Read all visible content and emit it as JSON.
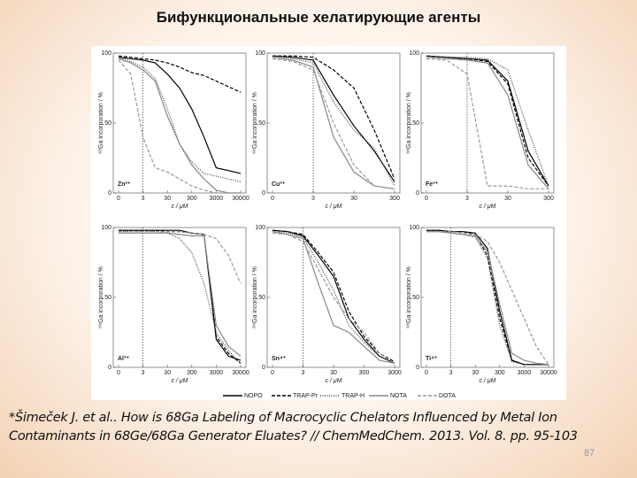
{
  "title": "Бифункциональные хелатирующие агенты",
  "citation": "*Šimeček J. et al.. How is 68Ga Labeling of Macrocyclic Chelators Influenced by Metal Ion Contaminants in 68Ge/68Ga Generator Eluates? // ChemMedChem. 2013. Vol. 8. pp. 95-103",
  "page_number": "87",
  "legend": [
    {
      "name": "NOPO",
      "color": "#000000",
      "dash": "solid"
    },
    {
      "name": "TRAP-Pr",
      "color": "#000000",
      "dash": "dashed"
    },
    {
      "name": "TRAP-H",
      "color": "#444444",
      "dash": "dotted"
    },
    {
      "name": "NOTA",
      "color": "#888888",
      "dash": "solid"
    },
    {
      "name": "DOTA",
      "color": "#999999",
      "dash": "dashed"
    }
  ],
  "chart_data": [
    {
      "type": "line",
      "title": "Zn²⁺",
      "x_label": "c / μM",
      "y_label": "⁶⁸Ga incorporation / %",
      "categories": [
        "0",
        null,
        "3",
        null,
        "30",
        null,
        "300",
        null,
        "3000",
        null,
        "30000"
      ],
      "ylim": [
        0,
        100
      ],
      "yticks": [
        0,
        50,
        100
      ],
      "series": [
        {
          "color": "#000000",
          "dash": "solid",
          "values": [
            97,
            96,
            95,
            93,
            85,
            75,
            60,
            40,
            18,
            16,
            14
          ]
        },
        {
          "color": "#000000",
          "dash": "dashed",
          "values": [
            98,
            97,
            96,
            95,
            93,
            90,
            86,
            84,
            80,
            76,
            72
          ]
        },
        {
          "color": "#444444",
          "dash": "dotted",
          "values": [
            97,
            94,
            90,
            82,
            60,
            35,
            22,
            14,
            12,
            10,
            8
          ]
        },
        {
          "color": "#888888",
          "dash": "solid",
          "values": [
            96,
            93,
            88,
            80,
            55,
            35,
            20,
            10,
            2,
            0,
            0
          ]
        },
        {
          "color": "#999999",
          "dash": "dashed",
          "values": [
            95,
            85,
            40,
            18,
            15,
            10,
            5,
            2,
            0,
            0,
            0
          ]
        }
      ]
    },
    {
      "type": "line",
      "title": "Cu²⁺",
      "x_label": "c / μM",
      "y_label": "⁶⁸Ga incorporation / %",
      "categories": [
        "0",
        null,
        "3",
        null,
        "30",
        null,
        "300"
      ],
      "ylim": [
        0,
        100
      ],
      "yticks": [
        0,
        50,
        100
      ],
      "series": [
        {
          "color": "#000000",
          "dash": "solid",
          "values": [
            98,
            97,
            95,
            70,
            48,
            30,
            8
          ]
        },
        {
          "color": "#000000",
          "dash": "dashed",
          "values": [
            98,
            98,
            97,
            88,
            75,
            45,
            10
          ]
        },
        {
          "color": "#444444",
          "dash": "dotted",
          "values": [
            97,
            96,
            93,
            65,
            45,
            32,
            5
          ]
        },
        {
          "color": "#888888",
          "dash": "solid",
          "values": [
            97,
            95,
            90,
            40,
            15,
            5,
            3
          ]
        },
        {
          "color": "#999999",
          "dash": "dashed",
          "values": [
            96,
            94,
            88,
            50,
            20,
            5,
            3
          ]
        }
      ]
    },
    {
      "type": "line",
      "title": "Fe³⁺",
      "x_label": "c / μM",
      "y_label": "⁶⁸Ga incorporation / %",
      "categories": [
        "0",
        null,
        "3",
        null,
        "30",
        null,
        "300"
      ],
      "ylim": [
        0,
        100
      ],
      "yticks": [
        0,
        50,
        100
      ],
      "series": [
        {
          "color": "#000000",
          "dash": "solid",
          "values": [
            98,
            97,
            96,
            95,
            80,
            30,
            5
          ]
        },
        {
          "color": "#000000",
          "dash": "dashed",
          "values": [
            98,
            97,
            96,
            94,
            78,
            25,
            5
          ]
        },
        {
          "color": "#444444",
          "dash": "dotted",
          "values": [
            98,
            97,
            97,
            96,
            88,
            45,
            5
          ]
        },
        {
          "color": "#888888",
          "dash": "solid",
          "values": [
            97,
            96,
            95,
            93,
            70,
            20,
            3
          ]
        },
        {
          "color": "#999999",
          "dash": "dashed",
          "values": [
            96,
            95,
            85,
            5,
            5,
            3,
            3
          ]
        }
      ]
    },
    {
      "type": "line",
      "title": "Al³⁺",
      "x_label": "c / μM",
      "y_label": "⁶⁸Ga incorporation / %",
      "categories": [
        "0",
        null,
        "3",
        null,
        "30",
        null,
        "300",
        null,
        "3000",
        null,
        "30000"
      ],
      "ylim": [
        0,
        100
      ],
      "yticks": [
        0,
        50,
        100
      ],
      "series": [
        {
          "color": "#000000",
          "dash": "solid",
          "values": [
            98,
            98,
            98,
            98,
            98,
            98,
            96,
            95,
            20,
            8,
            5
          ]
        },
        {
          "color": "#000000",
          "dash": "dashed",
          "values": [
            98,
            98,
            98,
            98,
            97,
            97,
            96,
            95,
            22,
            10,
            3
          ]
        },
        {
          "color": "#444444",
          "dash": "dotted",
          "values": [
            97,
            97,
            97,
            97,
            96,
            92,
            82,
            60,
            25,
            12,
            3
          ]
        },
        {
          "color": "#888888",
          "dash": "solid",
          "values": [
            96,
            96,
            96,
            96,
            96,
            95,
            94,
            94,
            30,
            15,
            8
          ]
        },
        {
          "color": "#999999",
          "dash": "dashed",
          "values": [
            97,
            97,
            97,
            97,
            97,
            97,
            96,
            95,
            92,
            80,
            60
          ]
        }
      ]
    },
    {
      "type": "line",
      "title": "Sn⁴⁺",
      "x_label": "c / μM",
      "y_label": "⁶⁸Ga incorporation / %",
      "categories": [
        "0",
        null,
        "3",
        null,
        "30",
        null,
        "300",
        null,
        "3000"
      ],
      "ylim": [
        0,
        100
      ],
      "yticks": [
        0,
        50,
        100
      ],
      "series": [
        {
          "color": "#000000",
          "dash": "solid",
          "values": [
            98,
            97,
            94,
            80,
            65,
            35,
            20,
            8,
            3
          ]
        },
        {
          "color": "#000000",
          "dash": "dashed",
          "values": [
            98,
            97,
            95,
            82,
            68,
            40,
            22,
            10,
            4
          ]
        },
        {
          "color": "#444444",
          "dash": "dotted",
          "values": [
            97,
            96,
            93,
            75,
            55,
            30,
            18,
            8,
            3
          ]
        },
        {
          "color": "#888888",
          "dash": "solid",
          "values": [
            97,
            95,
            92,
            60,
            30,
            25,
            15,
            5,
            3
          ]
        },
        {
          "color": "#999999",
          "dash": "dashed",
          "values": [
            96,
            95,
            90,
            70,
            50,
            35,
            25,
            10,
            3
          ]
        }
      ]
    },
    {
      "type": "line",
      "title": "Ti⁴⁺",
      "x_label": "c / μM",
      "y_label": "⁶⁸Ga incorporation / %",
      "categories": [
        "0",
        null,
        "3",
        null,
        "30",
        null,
        "300",
        null,
        "3000",
        null,
        "30000"
      ],
      "ylim": [
        0,
        100
      ],
      "yticks": [
        0,
        50,
        100
      ],
      "series": [
        {
          "color": "#000000",
          "dash": "solid",
          "values": [
            98,
            98,
            97,
            97,
            96,
            85,
            40,
            5,
            2,
            2,
            2
          ]
        },
        {
          "color": "#000000",
          "dash": "dashed",
          "values": [
            98,
            98,
            97,
            97,
            95,
            80,
            35,
            5,
            2,
            2,
            2
          ]
        },
        {
          "color": "#444444",
          "dash": "dotted",
          "values": [
            97,
            97,
            96,
            95,
            93,
            78,
            30,
            4,
            2,
            2,
            2
          ]
        },
        {
          "color": "#888888",
          "dash": "solid",
          "values": [
            97,
            97,
            96,
            95,
            94,
            83,
            45,
            10,
            5,
            3,
            2
          ]
        },
        {
          "color": "#999999",
          "dash": "dashed",
          "values": [
            97,
            97,
            97,
            96,
            95,
            90,
            75,
            55,
            35,
            15,
            2
          ]
        }
      ]
    }
  ]
}
